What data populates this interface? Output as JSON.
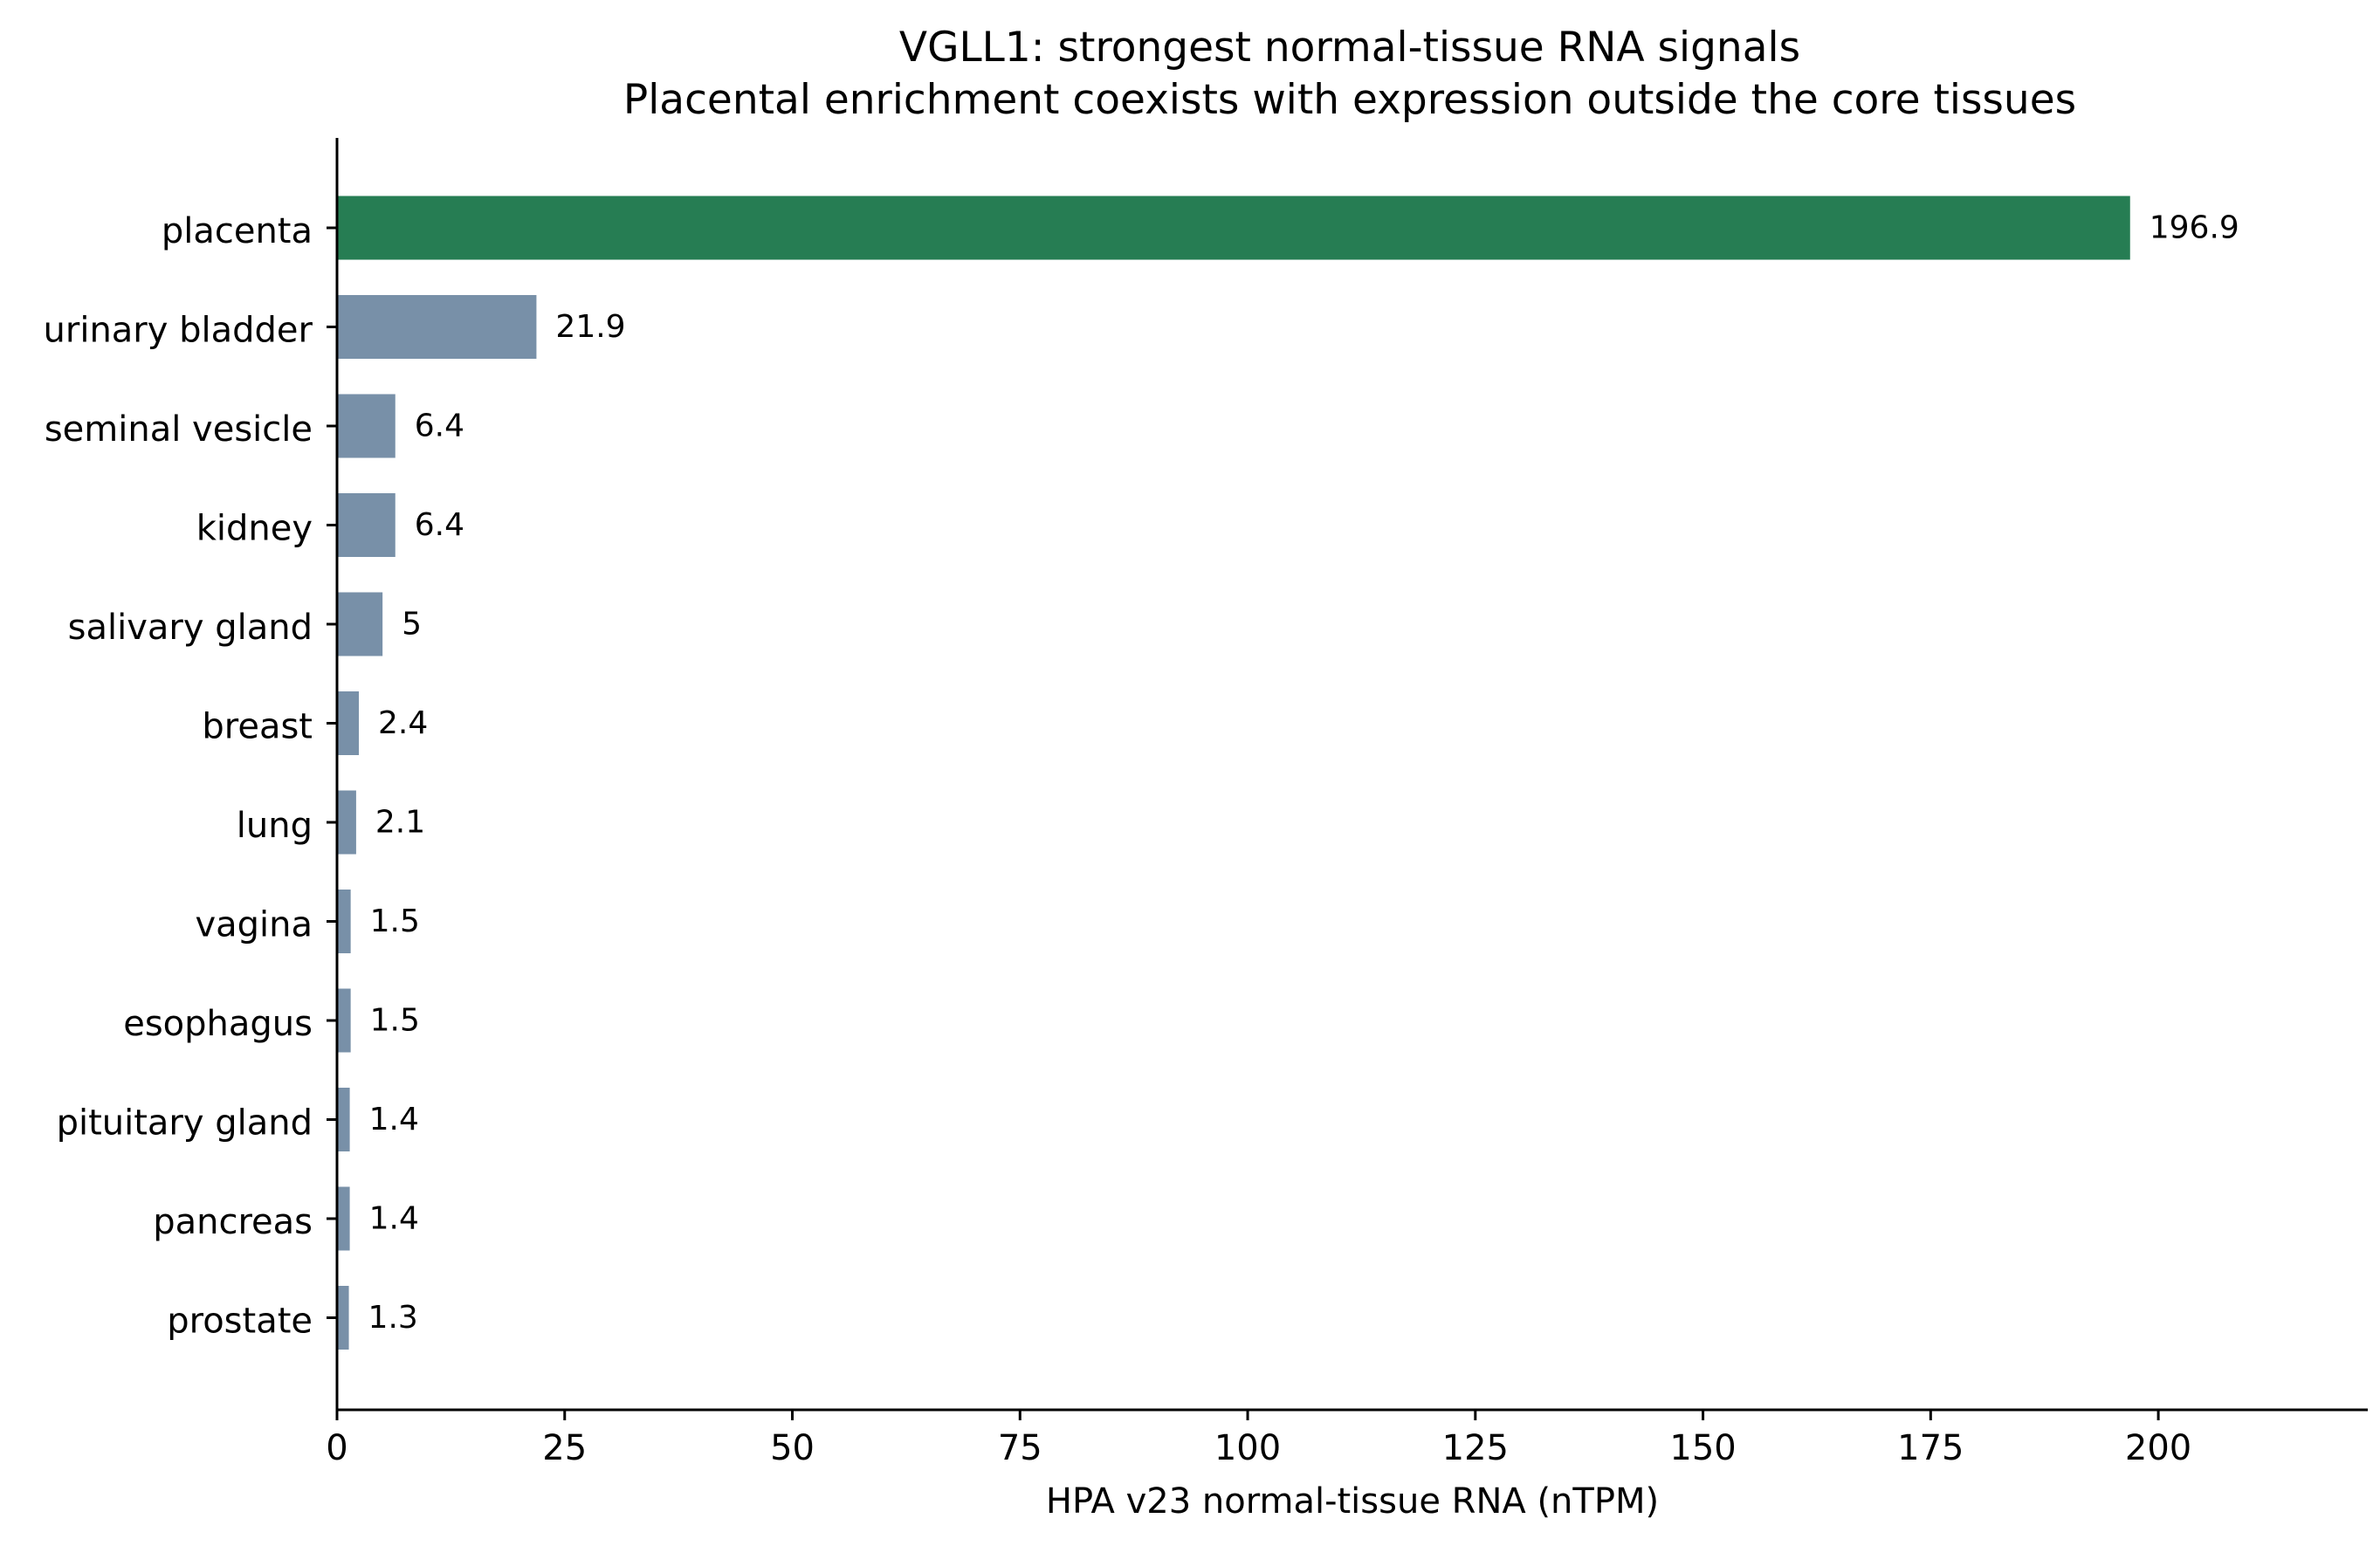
{
  "chart_data": {
    "type": "bar",
    "orientation": "horizontal",
    "title": "VGLL1: strongest normal-tissue RNA signals",
    "subtitle": "Placental enrichment coexists with expression outside the core tissues",
    "xlabel": "HPA v23 normal-tissue RNA (nTPM)",
    "ylabel": "",
    "xlim": [
      0,
      223
    ],
    "xticks": [
      0,
      25,
      50,
      75,
      100,
      125,
      150,
      175,
      200
    ],
    "grid": false,
    "categories": [
      "placenta",
      "urinary bladder",
      "seminal vesicle",
      "kidney",
      "salivary gland",
      "breast",
      "lung",
      "vagina",
      "esophagus",
      "pituitary gland",
      "pancreas",
      "prostate"
    ],
    "values": [
      196.9,
      21.9,
      6.4,
      6.4,
      5,
      2.4,
      2.1,
      1.5,
      1.5,
      1.4,
      1.4,
      1.3
    ],
    "value_labels": [
      "196.9",
      "21.9",
      "6.4",
      "6.4",
      "5",
      "2.4",
      "2.1",
      "1.5",
      "1.5",
      "1.4",
      "1.4",
      "1.3"
    ],
    "colors": {
      "highlight": "#267d53",
      "default": "#7890a8",
      "axis": "#000000"
    }
  }
}
